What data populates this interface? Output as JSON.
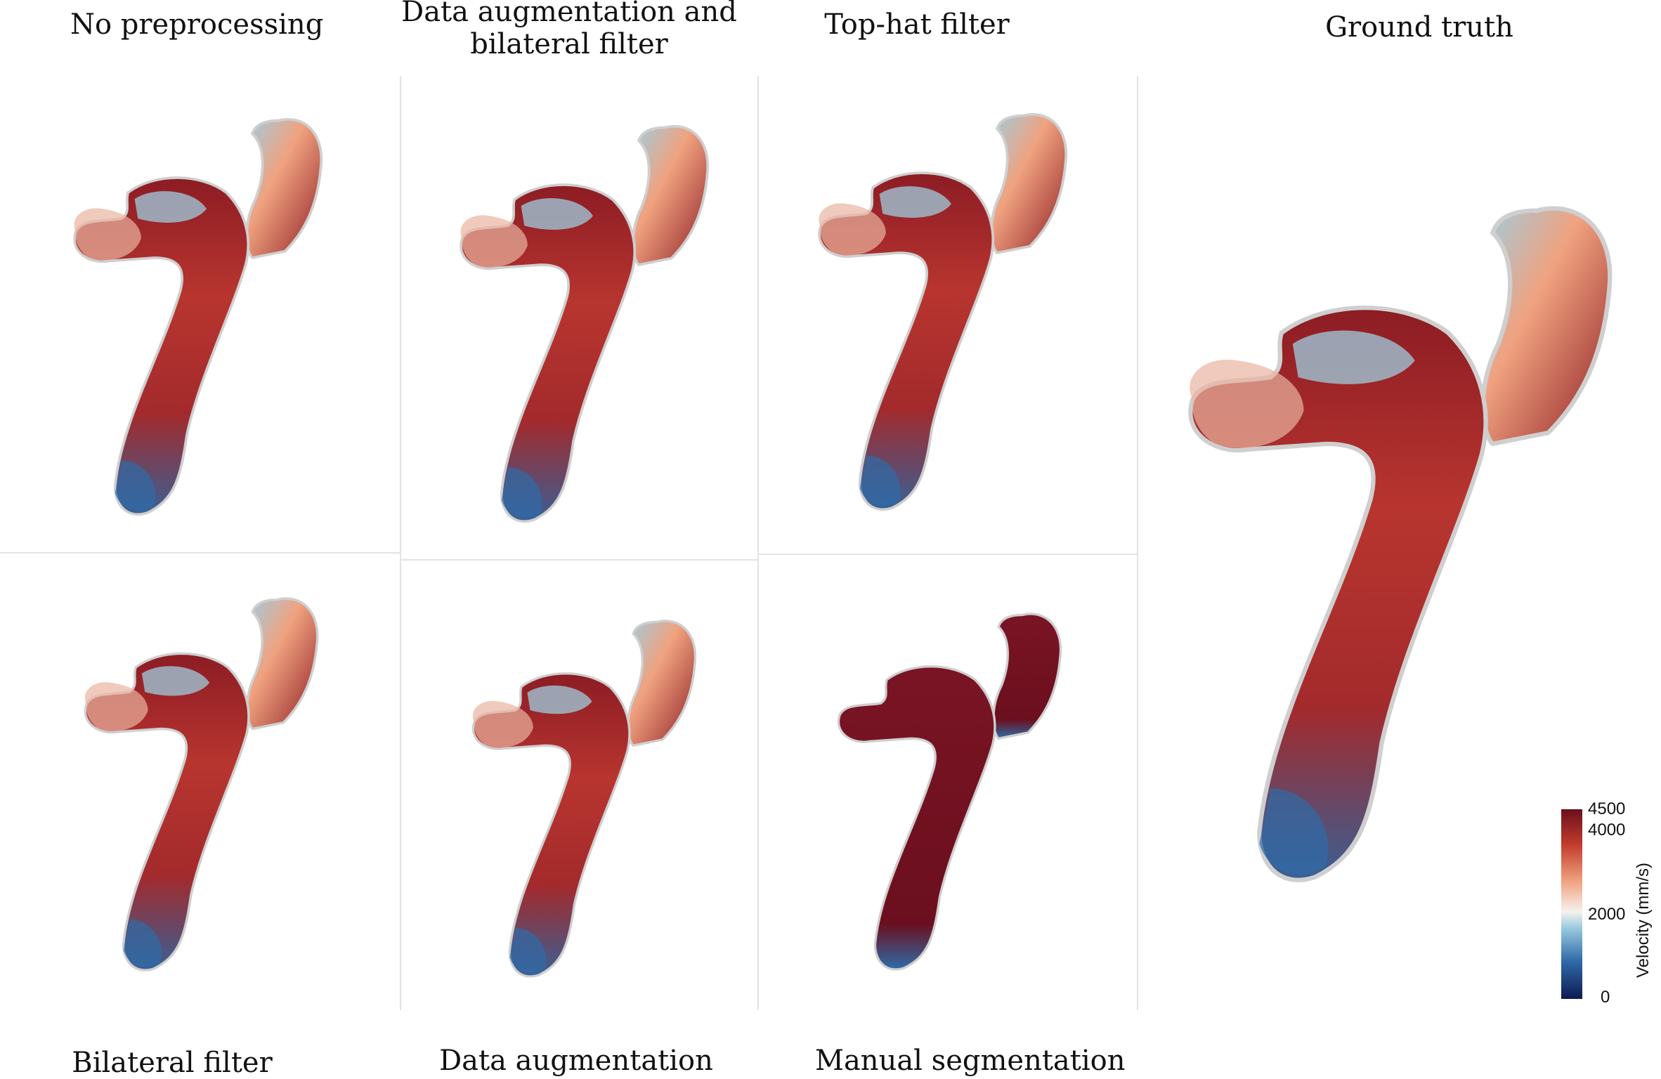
{
  "panels": {
    "no_preprocessing": "No preprocessing",
    "augmentation_bilateral_line1": "Data augmentation and",
    "augmentation_bilateral_line2": "bilateral filter",
    "top_hat": "Top-hat filter",
    "ground_truth": "Ground truth",
    "bilateral": "Bilateral filter",
    "augmentation": "Data augmentation",
    "manual": "Manual segmentation"
  },
  "colorbar": {
    "title": "Velocity (mm/s)",
    "ticks": [
      "4500",
      "4000",
      "2000",
      "0"
    ],
    "tick_values": [
      4500,
      4000,
      2000,
      0
    ],
    "min": 0,
    "max": 4500,
    "colors": [
      "#0d1a52",
      "#2f6ba8",
      "#9fcde0",
      "#f6f2ee",
      "#f0a27f",
      "#c0392b",
      "#6b0f1e"
    ]
  }
}
